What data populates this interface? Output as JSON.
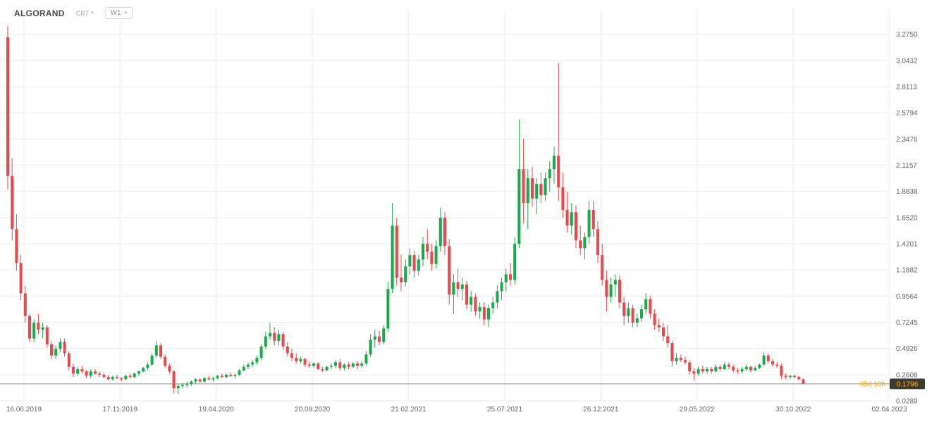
{
  "header": {
    "symbol": "ALGORAND",
    "account_type": "CRT",
    "timeframe": "W1"
  },
  "price_axis": {
    "ticks": [
      "3.2750",
      "3.0432",
      "2.8113",
      "2.5794",
      "2.3476",
      "2.1157",
      "1.8838",
      "1.6520",
      "1.4201",
      "1.1882",
      "0.9564",
      "0.7245",
      "0.4926",
      "0.2608",
      "0.0289"
    ],
    "current_price_label": "0.1796"
  },
  "time_axis": {
    "ticks": [
      "16.06.2019",
      "17.11.2019",
      "19.04.2020",
      "20.09.2020",
      "21.02.2021",
      "25.07.2021",
      "26.12.2021",
      "29.05.2022",
      "30.10.2022",
      "02.04.2023"
    ]
  },
  "status": {
    "candle_countdown": "05d 10h"
  },
  "colors": {
    "up": "#1ca94c",
    "down": "#e8494c",
    "grid": "#ededed",
    "axis_text": "#666666",
    "price_line": "#8f8f8f",
    "countdown_text": "#f7a600",
    "price_badge_bg": "#3c3c34",
    "price_badge_text": "#ffb400"
  },
  "chart_data": {
    "type": "candlestick",
    "title": "ALGORAND W1",
    "interval": "1 week",
    "x_range": [
      "16.06.2019",
      "02.04.2023"
    ],
    "y_range": [
      0.0289,
      3.275
    ],
    "y_ticks": [
      3.275,
      3.0432,
      2.8113,
      2.5794,
      2.3476,
      2.1157,
      1.8838,
      1.652,
      1.4201,
      1.1882,
      0.9564,
      0.7245,
      0.4926,
      0.2608,
      0.0289
    ],
    "current_price": 0.1796,
    "legend_position": "none",
    "grid": true,
    "candles_ohlc": [
      [
        3.25,
        3.35,
        1.9,
        2.02
      ],
      [
        2.02,
        2.18,
        1.45,
        1.55
      ],
      [
        1.55,
        1.68,
        1.18,
        1.25
      ],
      [
        1.25,
        1.32,
        0.92,
        0.98
      ],
      [
        0.98,
        1.05,
        0.72,
        0.78
      ],
      [
        0.78,
        0.8,
        0.55,
        0.58
      ],
      [
        0.58,
        0.75,
        0.55,
        0.72
      ],
      [
        0.72,
        0.8,
        0.62,
        0.66
      ],
      [
        0.66,
        0.72,
        0.58,
        0.68
      ],
      [
        0.68,
        0.7,
        0.5,
        0.53
      ],
      [
        0.53,
        0.56,
        0.4,
        0.43
      ],
      [
        0.43,
        0.52,
        0.4,
        0.49
      ],
      [
        0.49,
        0.58,
        0.46,
        0.55
      ],
      [
        0.55,
        0.58,
        0.42,
        0.45
      ],
      [
        0.45,
        0.47,
        0.3,
        0.33
      ],
      [
        0.33,
        0.36,
        0.24,
        0.27
      ],
      [
        0.27,
        0.33,
        0.25,
        0.31
      ],
      [
        0.31,
        0.34,
        0.27,
        0.29
      ],
      [
        0.29,
        0.3,
        0.23,
        0.25
      ],
      [
        0.25,
        0.31,
        0.23,
        0.29
      ],
      [
        0.29,
        0.31,
        0.26,
        0.27
      ],
      [
        0.27,
        0.29,
        0.24,
        0.26
      ],
      [
        0.26,
        0.28,
        0.23,
        0.24
      ],
      [
        0.24,
        0.26,
        0.21,
        0.22
      ],
      [
        0.22,
        0.25,
        0.21,
        0.24
      ],
      [
        0.24,
        0.26,
        0.22,
        0.23
      ],
      [
        0.23,
        0.24,
        0.2,
        0.22
      ],
      [
        0.22,
        0.26,
        0.21,
        0.25
      ],
      [
        0.25,
        0.27,
        0.23,
        0.24
      ],
      [
        0.24,
        0.28,
        0.23,
        0.27
      ],
      [
        0.27,
        0.3,
        0.25,
        0.29
      ],
      [
        0.29,
        0.33,
        0.28,
        0.32
      ],
      [
        0.32,
        0.37,
        0.3,
        0.35
      ],
      [
        0.35,
        0.45,
        0.34,
        0.43
      ],
      [
        0.43,
        0.56,
        0.41,
        0.52
      ],
      [
        0.52,
        0.54,
        0.4,
        0.42
      ],
      [
        0.42,
        0.44,
        0.32,
        0.34
      ],
      [
        0.34,
        0.36,
        0.27,
        0.29
      ],
      [
        0.29,
        0.3,
        0.1,
        0.14
      ],
      [
        0.14,
        0.18,
        0.09,
        0.16
      ],
      [
        0.16,
        0.19,
        0.14,
        0.17
      ],
      [
        0.17,
        0.2,
        0.15,
        0.18
      ],
      [
        0.18,
        0.21,
        0.16,
        0.2
      ],
      [
        0.2,
        0.23,
        0.18,
        0.22
      ],
      [
        0.22,
        0.23,
        0.19,
        0.2
      ],
      [
        0.2,
        0.24,
        0.19,
        0.23
      ],
      [
        0.23,
        0.25,
        0.21,
        0.22
      ],
      [
        0.22,
        0.24,
        0.2,
        0.23
      ],
      [
        0.23,
        0.26,
        0.22,
        0.25
      ],
      [
        0.25,
        0.27,
        0.23,
        0.24
      ],
      [
        0.24,
        0.27,
        0.23,
        0.26
      ],
      [
        0.26,
        0.28,
        0.24,
        0.25
      ],
      [
        0.25,
        0.27,
        0.23,
        0.26
      ],
      [
        0.26,
        0.31,
        0.25,
        0.3
      ],
      [
        0.3,
        0.35,
        0.29,
        0.33
      ],
      [
        0.33,
        0.37,
        0.31,
        0.35
      ],
      [
        0.35,
        0.39,
        0.33,
        0.37
      ],
      [
        0.37,
        0.43,
        0.35,
        0.41
      ],
      [
        0.41,
        0.53,
        0.39,
        0.51
      ],
      [
        0.51,
        0.64,
        0.49,
        0.6
      ],
      [
        0.6,
        0.72,
        0.57,
        0.63
      ],
      [
        0.63,
        0.68,
        0.52,
        0.56
      ],
      [
        0.56,
        0.66,
        0.52,
        0.62
      ],
      [
        0.62,
        0.64,
        0.48,
        0.51
      ],
      [
        0.51,
        0.55,
        0.42,
        0.45
      ],
      [
        0.45,
        0.49,
        0.38,
        0.41
      ],
      [
        0.41,
        0.45,
        0.36,
        0.38
      ],
      [
        0.38,
        0.42,
        0.36,
        0.4
      ],
      [
        0.4,
        0.41,
        0.33,
        0.35
      ],
      [
        0.35,
        0.38,
        0.32,
        0.34
      ],
      [
        0.34,
        0.37,
        0.32,
        0.36
      ],
      [
        0.36,
        0.37,
        0.3,
        0.31
      ],
      [
        0.31,
        0.33,
        0.28,
        0.3
      ],
      [
        0.3,
        0.34,
        0.29,
        0.33
      ],
      [
        0.33,
        0.36,
        0.31,
        0.34
      ],
      [
        0.34,
        0.39,
        0.32,
        0.37
      ],
      [
        0.37,
        0.4,
        0.3,
        0.32
      ],
      [
        0.32,
        0.36,
        0.3,
        0.35
      ],
      [
        0.35,
        0.37,
        0.31,
        0.33
      ],
      [
        0.33,
        0.37,
        0.32,
        0.36
      ],
      [
        0.36,
        0.38,
        0.31,
        0.34
      ],
      [
        0.34,
        0.38,
        0.32,
        0.36
      ],
      [
        0.36,
        0.47,
        0.34,
        0.44
      ],
      [
        0.44,
        0.62,
        0.42,
        0.57
      ],
      [
        0.57,
        0.66,
        0.5,
        0.6
      ],
      [
        0.6,
        0.65,
        0.52,
        0.55
      ],
      [
        0.55,
        0.7,
        0.53,
        0.67
      ],
      [
        0.67,
        1.08,
        0.64,
        1.02
      ],
      [
        1.02,
        1.78,
        0.98,
        1.58
      ],
      [
        1.58,
        1.65,
        1.05,
        1.12
      ],
      [
        1.12,
        1.32,
        1.0,
        1.08
      ],
      [
        1.08,
        1.28,
        1.04,
        1.22
      ],
      [
        1.22,
        1.38,
        1.15,
        1.32
      ],
      [
        1.32,
        1.36,
        1.12,
        1.18
      ],
      [
        1.18,
        1.32,
        1.14,
        1.28
      ],
      [
        1.28,
        1.48,
        1.22,
        1.42
      ],
      [
        1.42,
        1.55,
        1.28,
        1.35
      ],
      [
        1.35,
        1.42,
        1.18,
        1.24
      ],
      [
        1.24,
        1.45,
        1.2,
        1.4
      ],
      [
        1.4,
        1.74,
        1.35,
        1.65
      ],
      [
        1.65,
        1.7,
        1.32,
        1.4
      ],
      [
        1.4,
        1.46,
        0.88,
        0.97
      ],
      [
        0.97,
        1.15,
        0.8,
        1.08
      ],
      [
        1.08,
        1.2,
        0.95,
        1.02
      ],
      [
        1.02,
        1.12,
        0.92,
        1.06
      ],
      [
        1.06,
        1.09,
        0.84,
        0.88
      ],
      [
        0.88,
        1.0,
        0.82,
        0.95
      ],
      [
        0.95,
        0.98,
        0.78,
        0.82
      ],
      [
        0.82,
        0.9,
        0.76,
        0.86
      ],
      [
        0.86,
        0.9,
        0.7,
        0.75
      ],
      [
        0.75,
        0.88,
        0.68,
        0.85
      ],
      [
        0.85,
        0.95,
        0.8,
        0.9
      ],
      [
        0.9,
        1.05,
        0.85,
        1.0
      ],
      [
        1.0,
        1.12,
        0.92,
        1.08
      ],
      [
        1.08,
        1.2,
        1.0,
        1.15
      ],
      [
        1.15,
        1.25,
        1.05,
        1.1
      ],
      [
        1.1,
        1.48,
        1.06,
        1.42
      ],
      [
        1.42,
        2.52,
        1.38,
        2.08
      ],
      [
        2.08,
        2.35,
        1.6,
        1.78
      ],
      [
        1.78,
        2.08,
        1.55,
        2.0
      ],
      [
        2.0,
        2.1,
        1.75,
        1.82
      ],
      [
        1.82,
        2.0,
        1.68,
        1.95
      ],
      [
        1.95,
        2.05,
        1.78,
        1.85
      ],
      [
        1.85,
        2.05,
        1.8,
        2.0
      ],
      [
        2.0,
        2.15,
        1.88,
        2.08
      ],
      [
        2.08,
        2.28,
        1.95,
        2.2
      ],
      [
        2.2,
        3.02,
        1.8,
        1.92
      ],
      [
        1.92,
        2.05,
        1.65,
        1.72
      ],
      [
        1.72,
        1.88,
        1.52,
        1.58
      ],
      [
        1.58,
        1.78,
        1.5,
        1.7
      ],
      [
        1.7,
        1.76,
        1.38,
        1.45
      ],
      [
        1.45,
        1.58,
        1.32,
        1.38
      ],
      [
        1.38,
        1.52,
        1.28,
        1.48
      ],
      [
        1.48,
        1.8,
        1.42,
        1.72
      ],
      [
        1.72,
        1.8,
        1.48,
        1.55
      ],
      [
        1.55,
        1.62,
        1.25,
        1.32
      ],
      [
        1.32,
        1.42,
        1.05,
        1.1
      ],
      [
        1.1,
        1.18,
        0.82,
        0.95
      ],
      [
        0.95,
        1.12,
        0.9,
        1.06
      ],
      [
        1.06,
        1.15,
        0.95,
        1.1
      ],
      [
        1.1,
        1.14,
        0.85,
        0.9
      ],
      [
        0.9,
        0.95,
        0.7,
        0.78
      ],
      [
        0.78,
        0.9,
        0.72,
        0.85
      ],
      [
        0.85,
        0.88,
        0.68,
        0.72
      ],
      [
        0.72,
        0.8,
        0.68,
        0.76
      ],
      [
        0.76,
        0.88,
        0.73,
        0.84
      ],
      [
        0.84,
        0.98,
        0.8,
        0.93
      ],
      [
        0.93,
        0.96,
        0.76,
        0.8
      ],
      [
        0.8,
        0.84,
        0.66,
        0.7
      ],
      [
        0.7,
        0.76,
        0.64,
        0.68
      ],
      [
        0.68,
        0.72,
        0.56,
        0.6
      ],
      [
        0.6,
        0.7,
        0.5,
        0.54
      ],
      [
        0.54,
        0.56,
        0.33,
        0.38
      ],
      [
        0.38,
        0.45,
        0.35,
        0.41
      ],
      [
        0.41,
        0.44,
        0.37,
        0.39
      ],
      [
        0.39,
        0.42,
        0.35,
        0.37
      ],
      [
        0.37,
        0.39,
        0.26,
        0.29
      ],
      [
        0.29,
        0.32,
        0.21,
        0.27
      ],
      [
        0.27,
        0.33,
        0.25,
        0.31
      ],
      [
        0.31,
        0.34,
        0.27,
        0.29
      ],
      [
        0.29,
        0.33,
        0.27,
        0.31
      ],
      [
        0.31,
        0.33,
        0.27,
        0.29
      ],
      [
        0.29,
        0.35,
        0.28,
        0.33
      ],
      [
        0.33,
        0.35,
        0.29,
        0.31
      ],
      [
        0.31,
        0.37,
        0.3,
        0.35
      ],
      [
        0.35,
        0.37,
        0.31,
        0.33
      ],
      [
        0.33,
        0.35,
        0.28,
        0.3
      ],
      [
        0.3,
        0.32,
        0.27,
        0.29
      ],
      [
        0.29,
        0.33,
        0.27,
        0.31
      ],
      [
        0.31,
        0.35,
        0.29,
        0.33
      ],
      [
        0.33,
        0.34,
        0.28,
        0.3
      ],
      [
        0.3,
        0.34,
        0.29,
        0.32
      ],
      [
        0.32,
        0.36,
        0.31,
        0.35
      ],
      [
        0.35,
        0.46,
        0.34,
        0.43
      ],
      [
        0.43,
        0.45,
        0.36,
        0.38
      ],
      [
        0.38,
        0.4,
        0.33,
        0.35
      ],
      [
        0.35,
        0.37,
        0.32,
        0.34
      ],
      [
        0.34,
        0.36,
        0.22,
        0.25
      ],
      [
        0.25,
        0.27,
        0.22,
        0.24
      ],
      [
        0.24,
        0.26,
        0.22,
        0.25
      ],
      [
        0.25,
        0.26,
        0.23,
        0.24
      ],
      [
        0.24,
        0.25,
        0.21,
        0.22
      ],
      [
        0.22,
        0.23,
        0.18,
        0.1796
      ]
    ]
  }
}
